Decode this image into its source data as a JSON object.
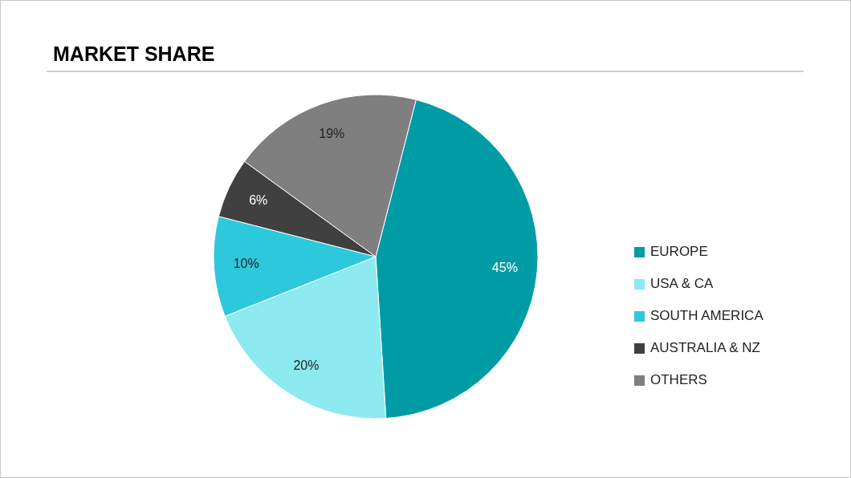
{
  "chart_data": {
    "type": "pie",
    "title": "MARKET SHARE",
    "categories": [
      "EUROPE",
      "USA & CA",
      "SOUTH AMERICA",
      "AUSTRALIA & NZ",
      "OTHERS"
    ],
    "values": [
      45,
      20,
      10,
      6,
      19
    ],
    "colors": [
      "#009ca6",
      "#8ceaf0",
      "#2ec8dc",
      "#404040",
      "#7f7f7f"
    ],
    "value_labels": [
      "45%",
      "20%",
      "10%",
      "6%",
      "19%"
    ],
    "legend": "right"
  }
}
